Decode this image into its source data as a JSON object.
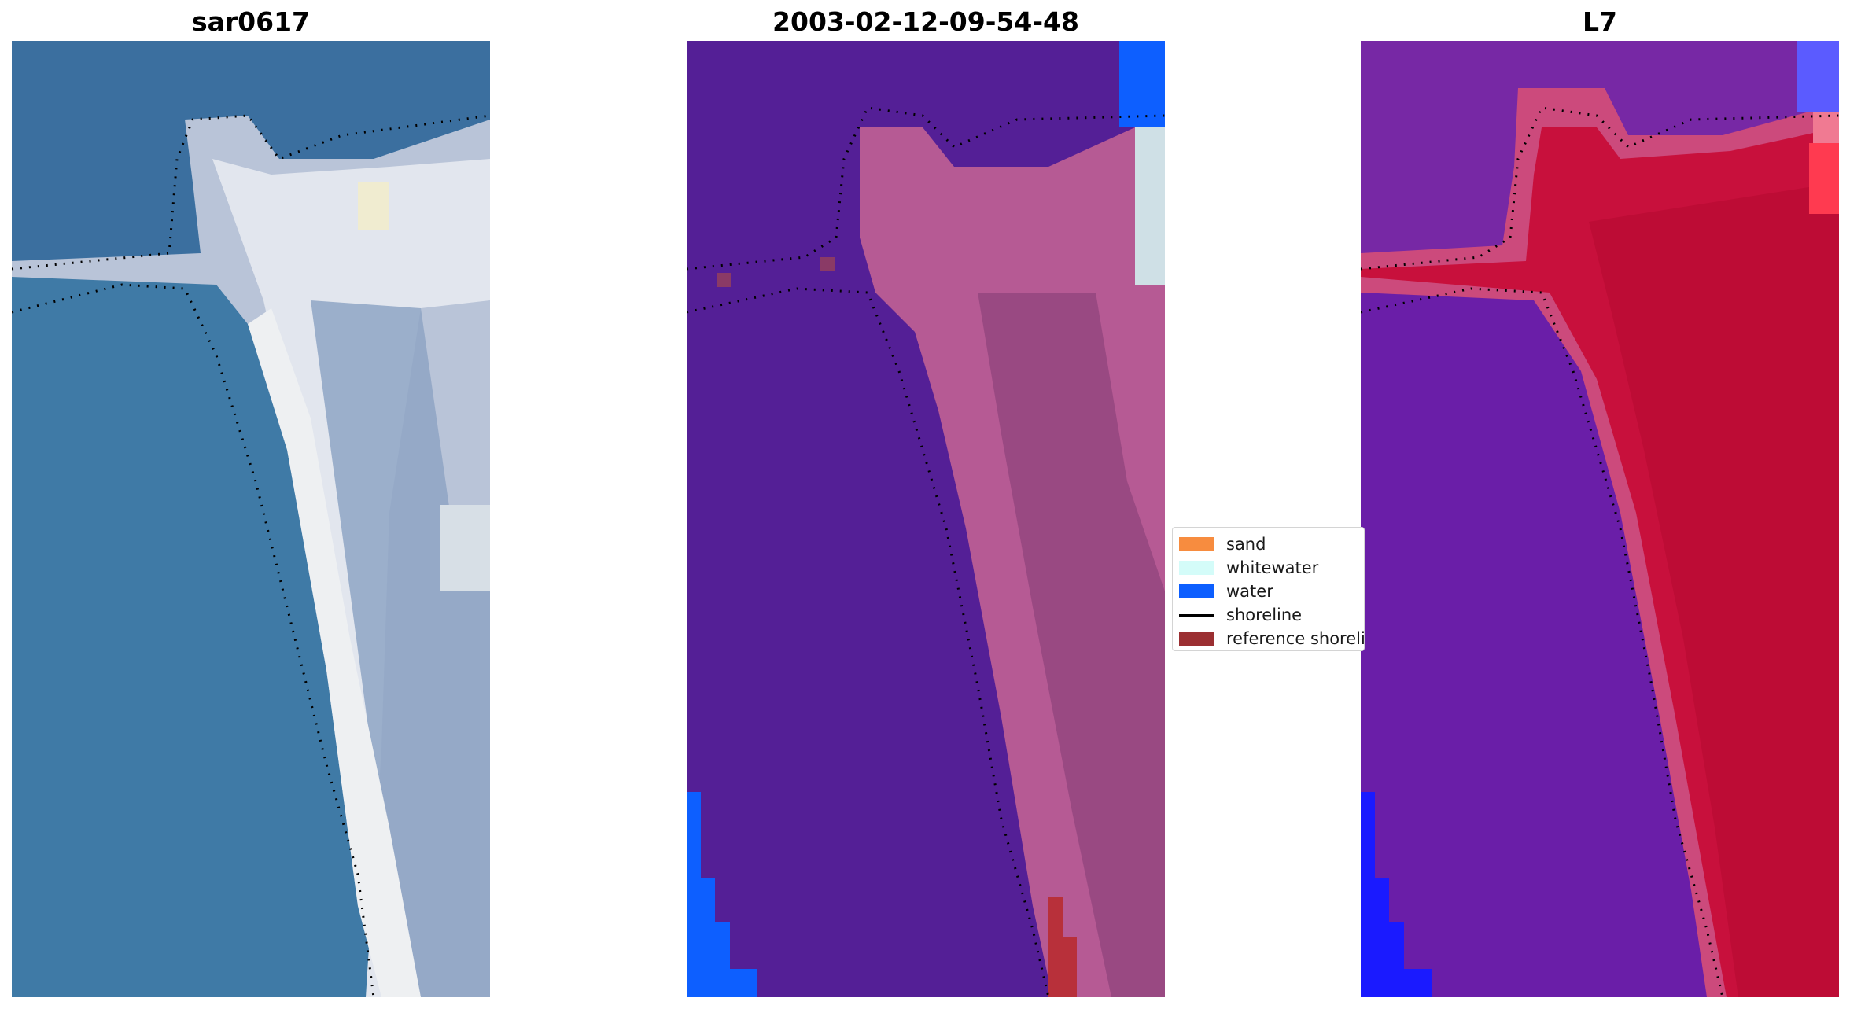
{
  "panels": [
    {
      "title": "sar0617"
    },
    {
      "title": "2003-02-12-09-54-48"
    },
    {
      "title": "L7"
    }
  ],
  "legend": {
    "items": [
      {
        "label": "sand",
        "color": "#f78c3f",
        "kind": "patch"
      },
      {
        "label": "whitewater",
        "color": "#d4fcf9",
        "kind": "patch"
      },
      {
        "label": "water",
        "color": "#0d5fff",
        "kind": "patch"
      },
      {
        "label": "shoreline",
        "color": "#000000",
        "kind": "line"
      },
      {
        "label": "reference shoreli",
        "color": "#9b2f32",
        "kind": "patch"
      }
    ]
  },
  "colors": {
    "rgb_water": "#3f7aa6",
    "rgb_sand": "#d9dde6",
    "class_background": "#541f96",
    "class_sand_overlay": "#b65a94",
    "class_water": "#0d5fff",
    "class_whitewater": "#cfe0e6",
    "class_reference": "#b8303a",
    "mndwi_water": "#6a1ea8",
    "mndwi_land": "#c8103c",
    "mndwi_edge": "#cc4a7c",
    "mndwi_blue": "#1a1aff"
  }
}
